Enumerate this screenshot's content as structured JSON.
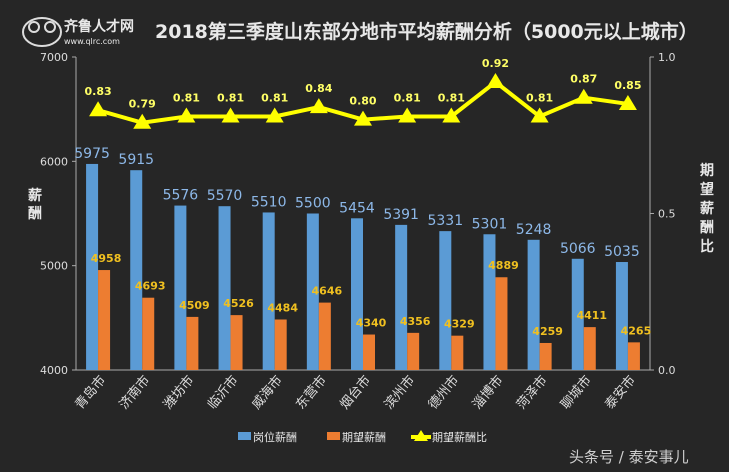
{
  "logo": {
    "text": "齐鲁人才网",
    "url_text": "www.qlrc.com"
  },
  "watermark": "头条号 / 泰安事儿",
  "chart_data": {
    "type": "bar",
    "title": "2018第三季度山东部分地市平均薪酬分析（5000元以上城市）",
    "ylabel": "薪酬",
    "y2label": "期望薪酬比",
    "ylim": [
      4000,
      7000
    ],
    "y2lim": [
      0,
      1.0
    ],
    "yticks": [
      "4000",
      "5000",
      "6000",
      "7000"
    ],
    "y2ticks": [
      "0.0",
      "0.5",
      "1.0"
    ],
    "grid": false,
    "legend_position": "bottom",
    "categories": [
      "青岛市",
      "济南市",
      "潍坊市",
      "临沂市",
      "威海市",
      "东营市",
      "烟台市",
      "滨州市",
      "德州市",
      "淄博市",
      "菏泽市",
      "聊城市",
      "泰安市"
    ],
    "series": [
      {
        "name": "岗位薪酬",
        "type": "bar",
        "axis": "left",
        "color": "#5b9bd5",
        "values": [
          5975,
          5915,
          5576,
          5570,
          5510,
          5500,
          5454,
          5391,
          5331,
          5301,
          5248,
          5066,
          5035
        ]
      },
      {
        "name": "期望薪酬",
        "type": "bar",
        "axis": "left",
        "color": "#ed7d31",
        "values": [
          4958,
          4693,
          4509,
          4526,
          4484,
          4646,
          4340,
          4356,
          4329,
          4889,
          4259,
          4411,
          4265
        ]
      },
      {
        "name": "期望薪酬比",
        "type": "line",
        "axis": "right",
        "color": "#ffff00",
        "marker": "triangle",
        "values": [
          0.83,
          0.79,
          0.81,
          0.81,
          0.81,
          0.84,
          0.8,
          0.81,
          0.81,
          0.92,
          0.81,
          0.87,
          0.85
        ]
      }
    ]
  }
}
